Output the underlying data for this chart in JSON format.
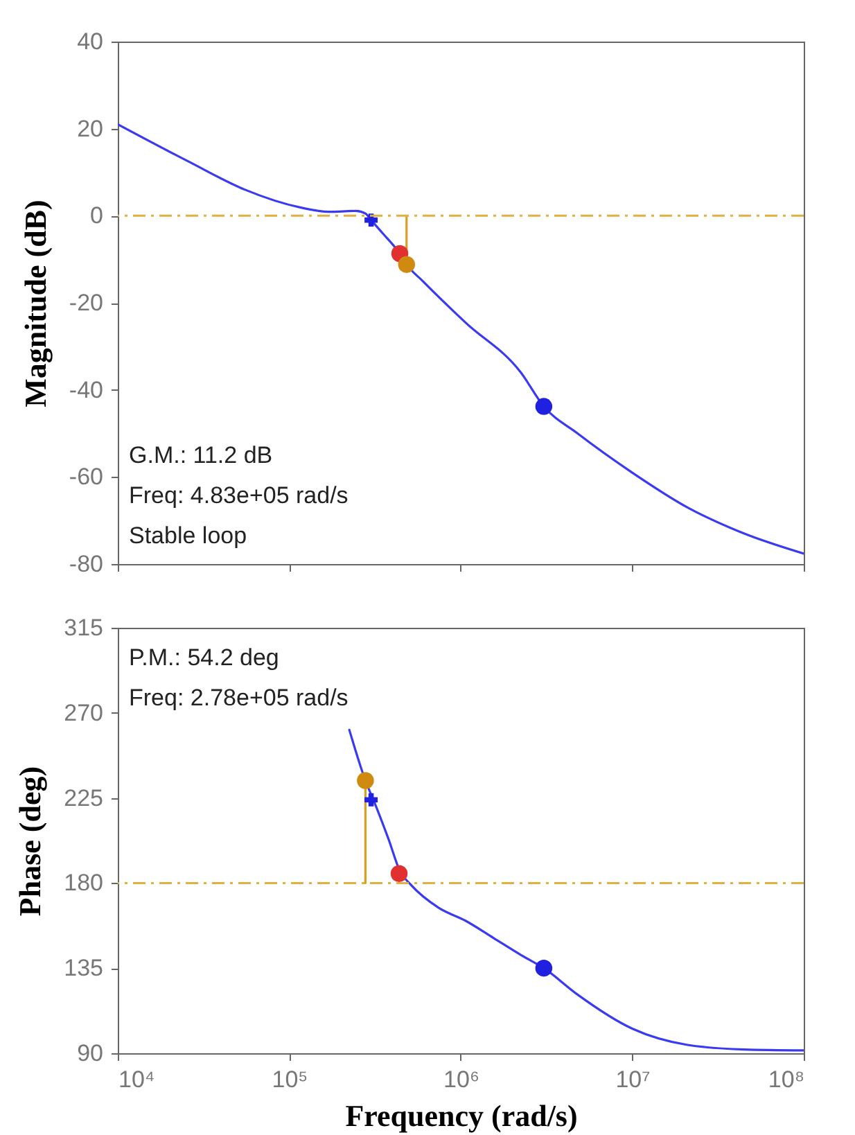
{
  "chart_data": [
    {
      "type": "line",
      "ylabel": "Magnitude (dB)",
      "log": "x",
      "tick_labels": "y",
      "xlim": [
        10000,
        100000000
      ],
      "xticks": [
        {
          "value": 10000,
          "label": null
        },
        {
          "value": 100000,
          "label": null
        },
        {
          "value": 1000000,
          "label": null
        },
        {
          "value": 10000000,
          "label": null
        },
        {
          "value": 100000000,
          "label": null
        }
      ],
      "ylim": [
        -80,
        40
      ],
      "yticks": [
        -80,
        -60,
        -40,
        -20,
        0,
        20,
        40
      ],
      "series": [
        {
          "color": "#3a3af0",
          "marker": "none",
          "x": [
            10000,
            26000,
            55000,
            116000,
            170000,
            245000,
            278000,
            300000,
            350000,
            441000,
            483000,
            600000,
            1070000,
            2240000,
            3050000,
            4800000,
            10000000,
            21000000,
            45000000,
            100000000
          ],
          "values": [
            21,
            12.4,
            6,
            1.9,
            0.9,
            1.1,
            0.5,
            -1,
            -4,
            -8.7,
            -11.2,
            -15,
            -24.6,
            -36,
            -43.8,
            -50,
            -59,
            -67,
            -73,
            -77.6
          ]
        },
        {
          "color": "#d9a020",
          "marker": "none",
          "x": [
            483000,
            483000
          ],
          "values": [
            0,
            -11.2
          ]
        },
        {
          "type": "scatter",
          "color": "#2020e0",
          "marker": "cross",
          "x": [
            300000
          ],
          "values": [
            -1
          ]
        },
        {
          "type": "scatter",
          "color": "#e03030",
          "marker": "circle",
          "x": [
            441000
          ],
          "values": [
            -8.7
          ]
        },
        {
          "type": "scatter",
          "color": "#d08a10",
          "marker": "circle",
          "x": [
            483000
          ],
          "values": [
            -11.2
          ]
        },
        {
          "type": "scatter",
          "color": "#2020e0",
          "marker": "circle",
          "x": [
            3050000
          ],
          "values": [
            -43.8
          ]
        }
      ],
      "ref_lines": [
        {
          "axis": "y",
          "value": 0,
          "color": "#e0b040",
          "line_style": "dashed"
        }
      ],
      "annotations": [
        "G.M.: 11.2 dB",
        "Freq: 4.83e+05 rad/s",
        "Stable loop"
      ]
    },
    {
      "type": "line",
      "ylabel": "Phase (deg)",
      "xlabel": "Frequency (rad/s)",
      "log": "x",
      "xlim": [
        10000,
        100000000
      ],
      "xticks": [
        {
          "value": 10000,
          "label": "10⁴"
        },
        {
          "value": 100000,
          "label": "10⁵"
        },
        {
          "value": 1000000,
          "label": "10⁶"
        },
        {
          "value": 10000000,
          "label": "10⁷"
        },
        {
          "value": 100000000,
          "label": "10⁸"
        }
      ],
      "ylim": [
        90,
        315
      ],
      "yticks": [
        90,
        135,
        180,
        225,
        270,
        315
      ],
      "series": [
        {
          "color": "#3a3af0",
          "marker": "none",
          "x": [
            224000,
            278000,
            316000,
            380000,
            441000,
            513000,
            741000,
            1070000,
            1550000,
            2240000,
            3050000,
            4800000,
            10000000,
            21000000,
            45000000,
            100000000
          ],
          "values": [
            261,
            234.2,
            222,
            203,
            186.5,
            179,
            167,
            160,
            151,
            142,
            135,
            121,
            103,
            94.4,
            92,
            91.5
          ]
        },
        {
          "color": "#d9a020",
          "marker": "none",
          "x": [
            278000,
            278000
          ],
          "values": [
            180,
            234.2
          ]
        },
        {
          "type": "scatter",
          "color": "#d08a10",
          "marker": "circle",
          "x": [
            278000
          ],
          "values": [
            234.2
          ]
        },
        {
          "type": "scatter",
          "color": "#2020e0",
          "marker": "cross",
          "x": [
            300000
          ],
          "values": [
            224
          ]
        },
        {
          "type": "scatter",
          "color": "#e03030",
          "marker": "circle",
          "x": [
            437000
          ],
          "values": [
            185
          ]
        },
        {
          "type": "scatter",
          "color": "#2020e0",
          "marker": "circle",
          "x": [
            3050000
          ],
          "values": [
            135
          ]
        }
      ],
      "ref_lines": [
        {
          "axis": "y",
          "value": 180,
          "color": "#e0b040",
          "line_style": "dashed"
        }
      ],
      "annotations": [
        "P.M.: 54.2 deg",
        "Freq: 2.78e+05 rad/s"
      ]
    }
  ]
}
